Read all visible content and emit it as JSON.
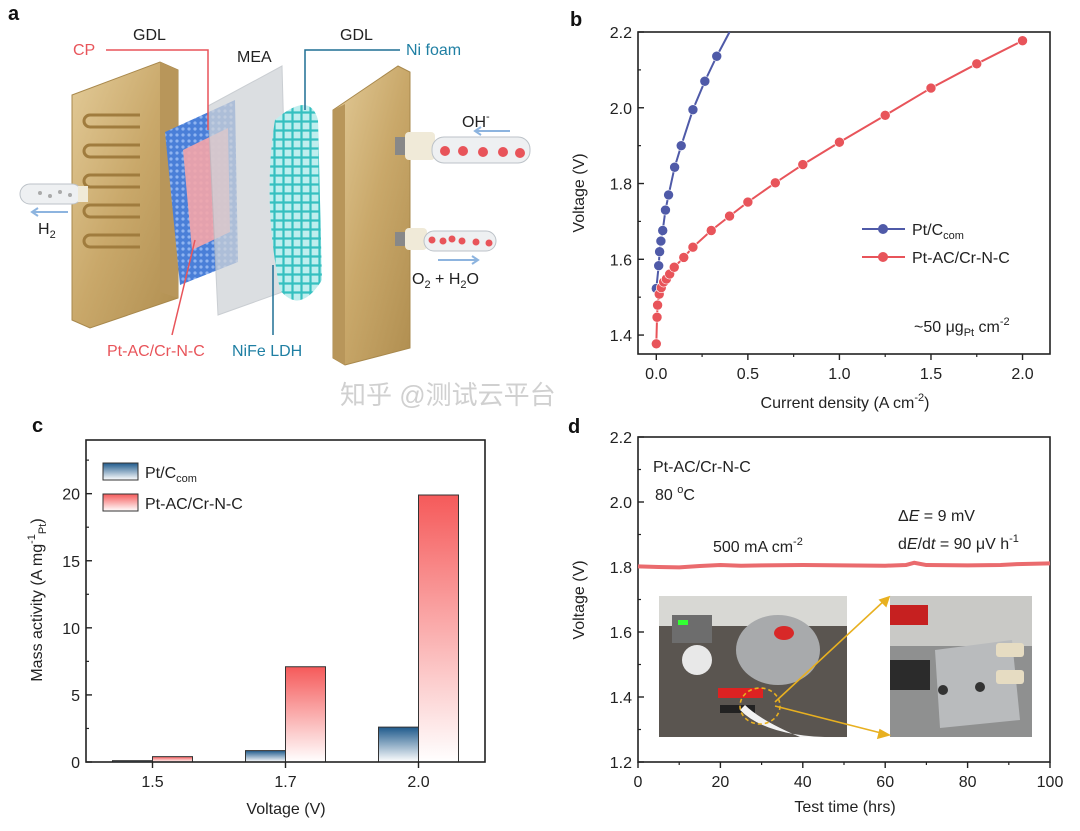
{
  "panel_labels": {
    "a": "a",
    "b": "b",
    "c": "c",
    "d": "d"
  },
  "panel_a": {
    "gdl_left": "GDL",
    "cp": "CP",
    "mea": "MEA",
    "gdl_right": "GDL",
    "ni_foam": "Ni foam",
    "oh": {
      "main": "OH",
      "sup": "-"
    },
    "h2": {
      "main": "H",
      "sub": "2"
    },
    "o2_h2o": {
      "p1": "O",
      "s1": "2",
      "p2": " + H",
      "s2": "2",
      "p3": "O"
    },
    "cathode_catalyst": "Pt-AC/Cr-N-C",
    "anode_catalyst": "NiFe LDH",
    "colors": {
      "red_label": "#e8545a",
      "blue_label": "#1f7fa3",
      "plate": "#c9a86a"
    }
  },
  "chart_data": [
    {
      "panel": "b",
      "type": "line",
      "xlabel": {
        "main": "Current density (A cm",
        "sup": "-2",
        "end": ")"
      },
      "ylabel": "Voltage (V)",
      "xlim": [
        -0.1,
        2.15
      ],
      "ylim": [
        1.35,
        2.2
      ],
      "xticks": [
        "0.0",
        "0.5",
        "1.0",
        "1.5",
        "2.0"
      ],
      "yticks": [
        "1.4",
        "1.6",
        "1.8",
        "2.0",
        "2.2"
      ],
      "legend_position": "center-right",
      "annotation": {
        "p1": "~50 μg",
        "sub": "Pt",
        "p2": " cm",
        "sup": "-2"
      },
      "series": [
        {
          "name": {
            "main": "Pt/C",
            "sub": "com"
          },
          "color": "#4f5aa8",
          "points": [
            [
              0,
              1.523
            ],
            [
              0.013,
              1.583
            ],
            [
              0.018,
              1.62
            ],
            [
              0.025,
              1.648
            ],
            [
              0.035,
              1.676
            ],
            [
              0.05,
              1.73
            ],
            [
              0.067,
              1.77
            ],
            [
              0.1,
              1.843
            ],
            [
              0.136,
              1.9
            ],
            [
              0.2,
              1.995
            ],
            [
              0.265,
              2.07
            ],
            [
              0.33,
              2.136
            ]
          ],
          "line_end": [
            0.4,
            2.2
          ]
        },
        {
          "name": {
            "main": "Pt-AC/Cr-N-C",
            "sub": ""
          },
          "color": "#e8545a",
          "points": [
            [
              0,
              1.377
            ],
            [
              0.004,
              1.447
            ],
            [
              0.007,
              1.479
            ],
            [
              0.016,
              1.508
            ],
            [
              0.027,
              1.525
            ],
            [
              0.04,
              1.54
            ],
            [
              0.055,
              1.548
            ],
            [
              0.073,
              1.561
            ],
            [
              0.098,
              1.579
            ],
            [
              0.15,
              1.605
            ],
            [
              0.2,
              1.632
            ],
            [
              0.3,
              1.676
            ],
            [
              0.4,
              1.714
            ],
            [
              0.5,
              1.751
            ],
            [
              0.65,
              1.802
            ],
            [
              0.8,
              1.85
            ],
            [
              1.0,
              1.909
            ],
            [
              1.25,
              1.98
            ],
            [
              1.5,
              2.052
            ],
            [
              1.75,
              2.116
            ],
            [
              2.0,
              2.177
            ]
          ]
        }
      ]
    },
    {
      "panel": "c",
      "type": "bar",
      "categories": [
        "1.5",
        "1.7",
        "2.0"
      ],
      "xlabel": "Voltage (V)",
      "ylabel": {
        "main": "Mass activity (A mg",
        "sup": "-1",
        "sub": "Pt",
        "end": ")"
      },
      "ylim": [
        0,
        24
      ],
      "yticks": [
        "0",
        "5",
        "10",
        "15",
        "20"
      ],
      "legend_position": "top-left",
      "series": [
        {
          "name": {
            "main": "Pt/C",
            "sub": "com"
          },
          "color": "#1f5a8c",
          "values": [
            0.1,
            0.85,
            2.6
          ]
        },
        {
          "name": {
            "main": "Pt-AC/Cr-N-C",
            "sub": ""
          },
          "color": "#f55a5a",
          "values": [
            0.4,
            7.1,
            19.9
          ]
        }
      ]
    },
    {
      "panel": "d",
      "type": "line",
      "xlabel": "Test time (hrs)",
      "ylabel": "Voltage (V)",
      "xlim": [
        0,
        100
      ],
      "ylim": [
        1.2,
        2.2
      ],
      "xticks": [
        "0",
        "20",
        "40",
        "60",
        "80",
        "100"
      ],
      "yticks": [
        "1.2",
        "1.4",
        "1.6",
        "1.8",
        "2.0",
        "2.2"
      ],
      "annotations": {
        "sample": "Pt-AC/Cr-N-C",
        "temp": {
          "main": "80 ",
          "sup": "o",
          "end": "C"
        },
        "current": {
          "main": "500 mA cm",
          "sup": "-2"
        },
        "delta_e": {
          "d": "Δ",
          "e": "E",
          "rest": " = 9 mV"
        },
        "rate": {
          "d": "d",
          "e": "E",
          "slash": "/d",
          "t": "t",
          "rest": " = 90 μV h",
          "sup": "-1"
        }
      },
      "series": [
        {
          "color": "#ea6b6e",
          "points": [
            [
              0,
              1.802
            ],
            [
              5,
              1.8
            ],
            [
              10,
              1.799
            ],
            [
              15,
              1.803
            ],
            [
              20,
              1.806
            ],
            [
              25,
              1.804
            ],
            [
              30,
              1.805
            ],
            [
              40,
              1.806
            ],
            [
              50,
              1.805
            ],
            [
              60,
              1.804
            ],
            [
              65,
              1.806
            ],
            [
              67,
              1.813
            ],
            [
              70,
              1.806
            ],
            [
              80,
              1.805
            ],
            [
              88,
              1.806
            ],
            [
              92,
              1.809
            ],
            [
              100,
              1.811
            ]
          ]
        }
      ]
    }
  ],
  "watermark": "知乎 @测试云平台"
}
